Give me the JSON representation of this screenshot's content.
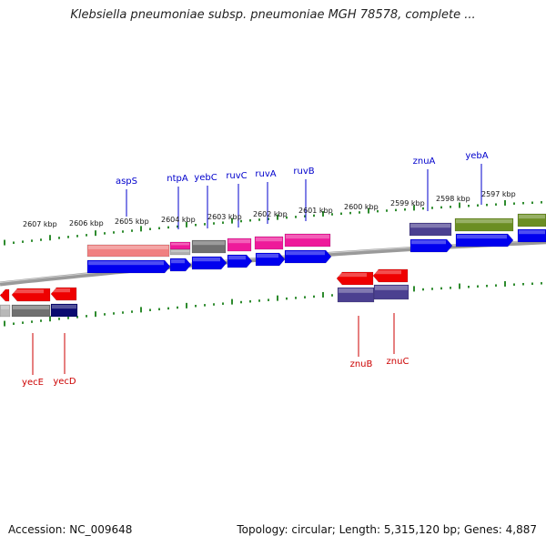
{
  "title": "Klebsiella pneumoniae subsp. pneumoniae MGH 78578, complete ...",
  "footer": {
    "accession": "Accession: NC_009648",
    "stats": "Topology: circular; Length: 5,315,120 bp; Genes: 4,887"
  },
  "colors": {
    "backbone": "#8a8a8a",
    "ticks": "#2e8b2e",
    "top_label": "#0000cc",
    "bottom_label": "#cc0000",
    "cds": "#0000ee",
    "red_gene": "#ee0000",
    "magenta": "#ee1a9a",
    "gray": "#707070",
    "salmon": "#f08080",
    "purple": "#4b4090",
    "navy": "#0a0a70",
    "olive": "#6b8e23"
  },
  "scale_labels": [
    "2607 kbp",
    "2606 kbp",
    "2605 kbp",
    "2604 kbp",
    "2603 kbp",
    "2602 kbp",
    "2601 kbp",
    "2600 kbp",
    "2599 kbp",
    "2598 kbp",
    "2597 kbp"
  ],
  "top_gene_labels": [
    "aspS",
    "ntpA",
    "yebC",
    "ruvC",
    "ruvA",
    "ruvB",
    "znuA",
    "yebA"
  ],
  "bottom_gene_labels": [
    "yecE",
    "yecD",
    "znuB",
    "znuC"
  ]
}
